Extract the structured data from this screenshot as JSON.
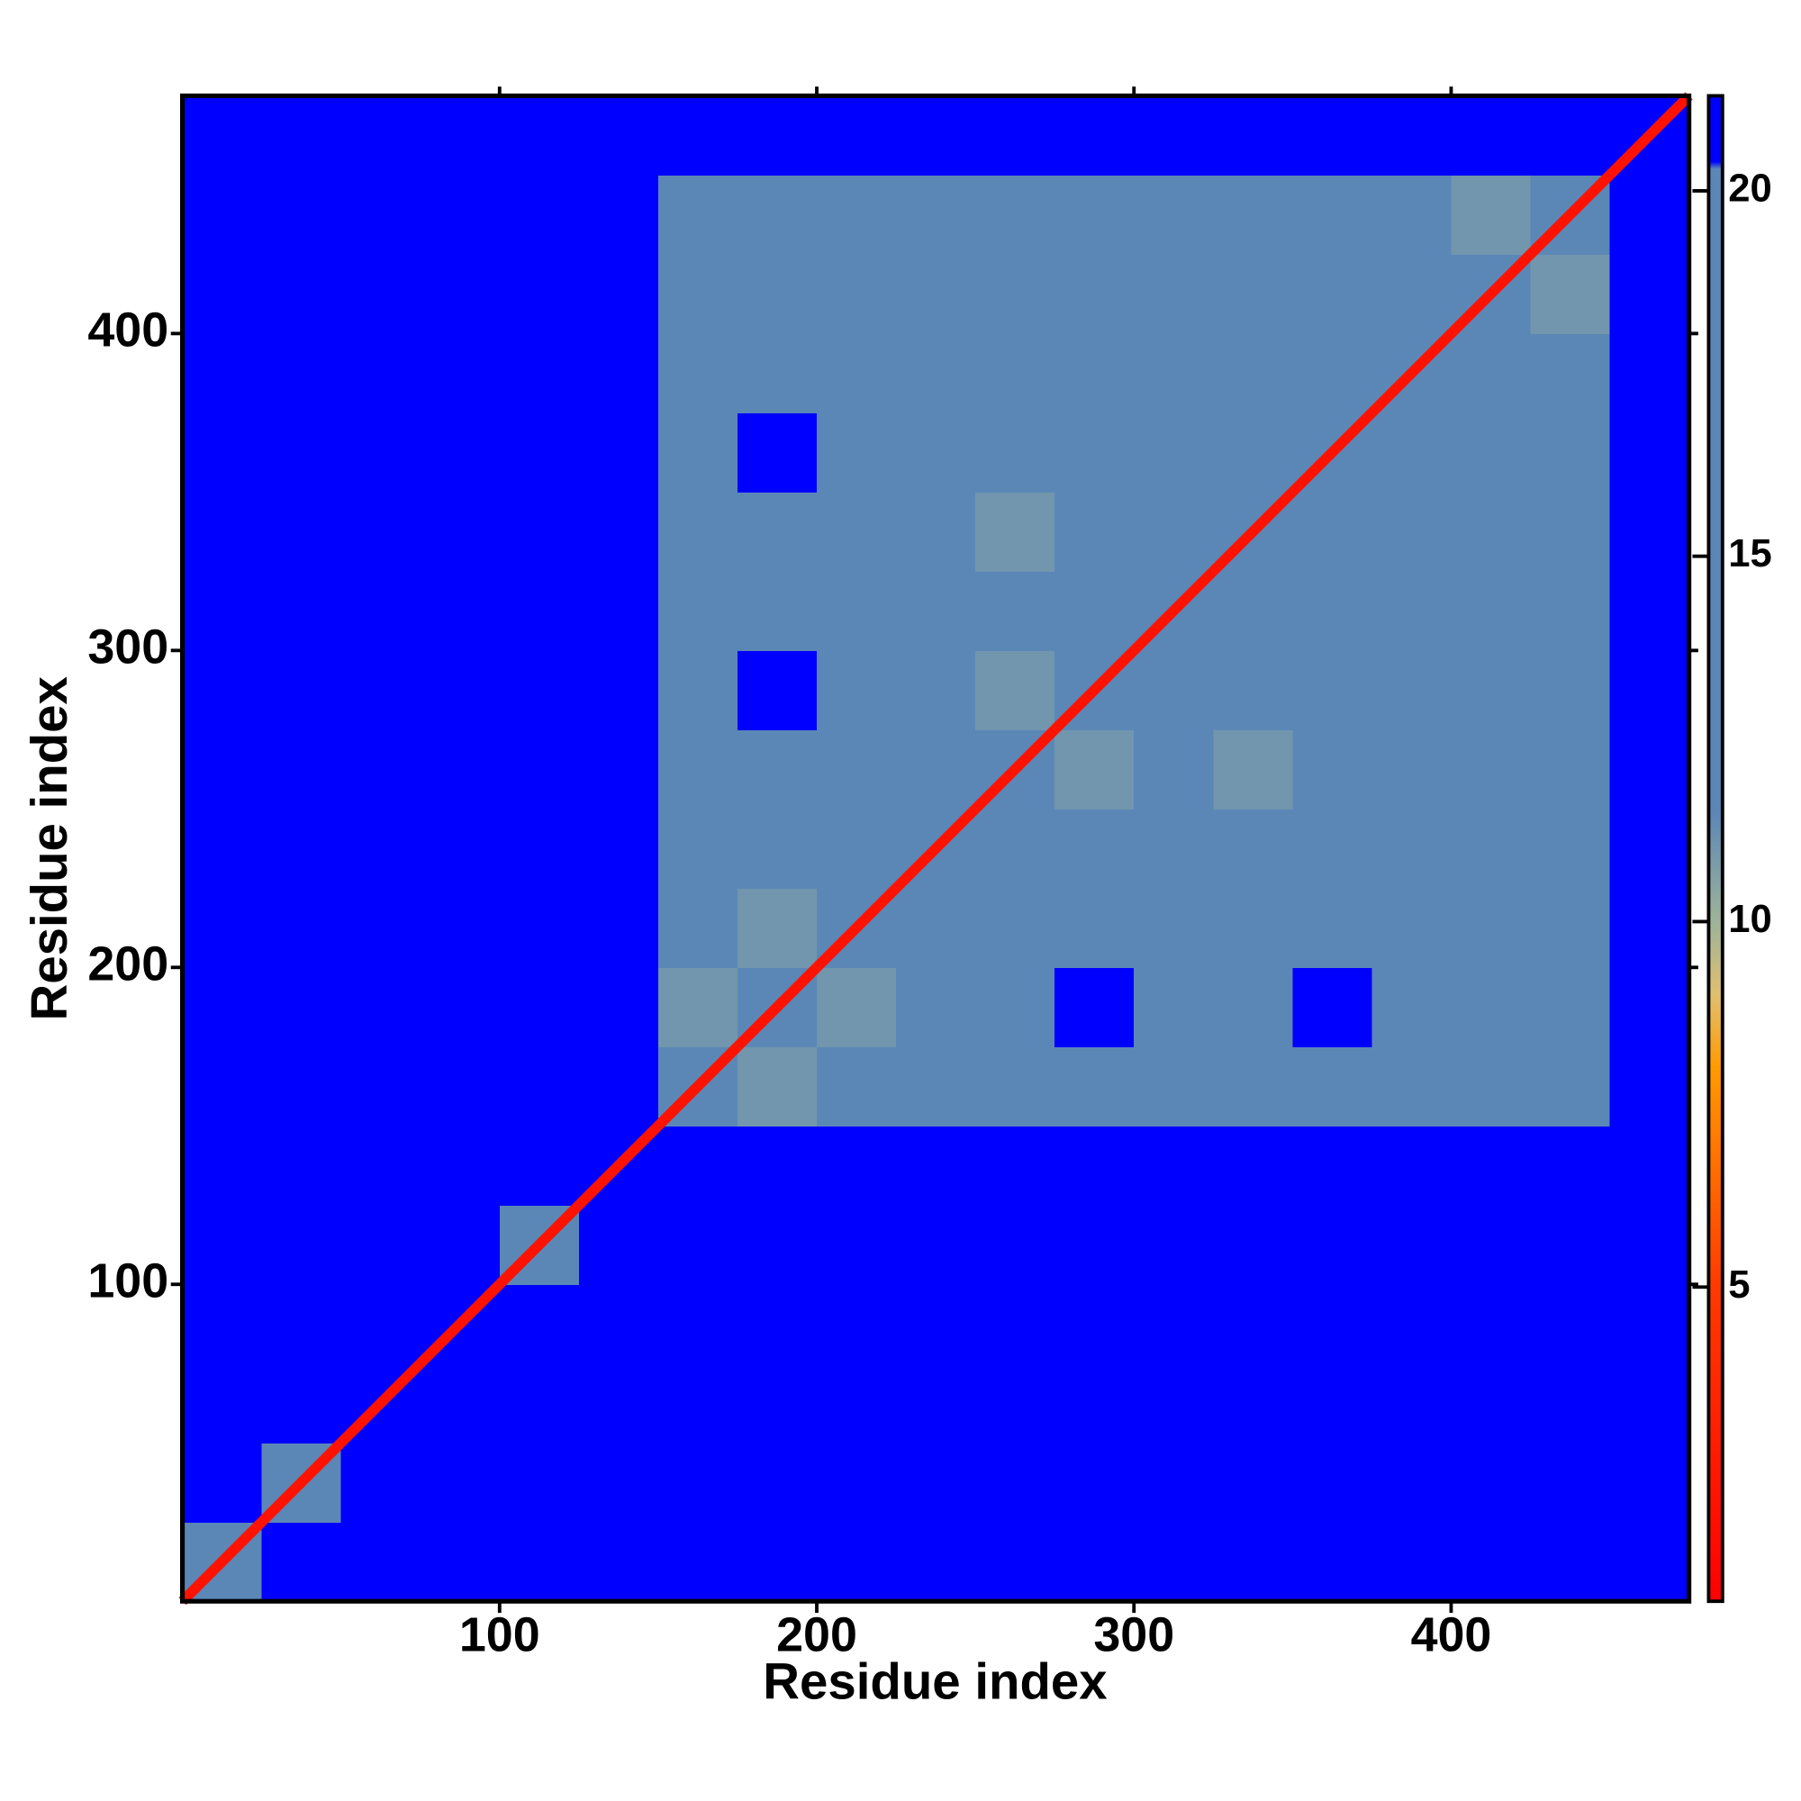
{
  "chart_data": {
    "type": "heatmap",
    "xlabel": "Residue index",
    "ylabel": "Residue index",
    "xlim": [
      0,
      475
    ],
    "ylim": [
      0,
      475
    ],
    "xticks": [
      100,
      200,
      300,
      400
    ],
    "yticks": [
      100,
      200,
      300,
      400
    ],
    "bins": [
      0,
      25,
      50,
      75,
      100,
      125,
      150,
      175,
      200,
      225,
      250,
      275,
      300,
      325,
      350,
      375,
      400,
      425,
      450,
      475
    ],
    "matrix": [
      [
        14,
        21,
        21,
        21,
        21,
        21,
        21,
        21,
        21,
        21,
        21,
        21,
        21,
        21,
        21,
        21,
        21,
        21,
        21
      ],
      [
        21,
        14,
        21,
        21,
        21,
        21,
        21,
        21,
        21,
        21,
        21,
        21,
        21,
        21,
        21,
        21,
        21,
        21,
        21
      ],
      [
        21,
        21,
        21,
        21,
        21,
        21,
        21,
        21,
        21,
        21,
        21,
        21,
        21,
        21,
        21,
        21,
        21,
        21,
        21
      ],
      [
        21,
        21,
        21,
        21,
        21,
        21,
        21,
        21,
        21,
        21,
        21,
        21,
        21,
        21,
        21,
        21,
        21,
        21,
        21
      ],
      [
        21,
        21,
        21,
        21,
        14,
        21,
        21,
        21,
        21,
        21,
        21,
        21,
        21,
        21,
        21,
        21,
        21,
        21,
        21
      ],
      [
        21,
        21,
        21,
        21,
        21,
        21,
        21,
        21,
        21,
        21,
        21,
        21,
        21,
        21,
        21,
        21,
        21,
        21,
        21
      ],
      [
        21,
        21,
        21,
        21,
        21,
        21,
        12,
        11,
        13,
        16,
        16,
        16,
        16,
        16,
        16,
        16,
        16,
        16,
        21
      ],
      [
        21,
        21,
        21,
        21,
        21,
        21,
        11,
        12,
        11,
        16,
        16,
        21,
        16,
        16,
        21,
        16,
        16,
        16,
        21
      ],
      [
        21,
        21,
        21,
        21,
        21,
        21,
        13,
        11,
        12,
        12,
        12,
        16,
        16,
        16,
        16,
        16,
        16,
        16,
        21
      ],
      [
        21,
        21,
        21,
        21,
        21,
        21,
        16,
        16,
        12,
        12,
        16,
        16,
        16,
        12,
        16,
        16,
        13,
        16,
        21
      ],
      [
        21,
        21,
        21,
        21,
        21,
        21,
        16,
        16,
        12,
        16,
        12,
        11,
        16,
        11,
        16,
        16,
        16,
        16,
        21
      ],
      [
        21,
        21,
        21,
        21,
        21,
        21,
        16,
        21,
        16,
        16,
        11,
        12,
        12,
        16,
        16,
        16,
        16,
        16,
        21
      ],
      [
        21,
        21,
        21,
        21,
        21,
        21,
        16,
        16,
        16,
        16,
        16,
        12,
        12,
        12,
        16,
        16,
        16,
        16,
        21
      ],
      [
        21,
        21,
        21,
        21,
        21,
        21,
        16,
        16,
        16,
        12,
        11,
        16,
        12,
        12,
        13,
        16,
        12,
        16,
        21
      ],
      [
        21,
        21,
        21,
        21,
        21,
        21,
        16,
        21,
        16,
        16,
        16,
        16,
        16,
        13,
        12,
        16,
        16,
        16,
        21
      ],
      [
        21,
        21,
        21,
        21,
        21,
        21,
        16,
        16,
        16,
        16,
        16,
        16,
        16,
        16,
        16,
        12,
        12,
        16,
        21
      ],
      [
        21,
        21,
        21,
        21,
        21,
        21,
        16,
        16,
        16,
        13,
        16,
        16,
        16,
        12,
        16,
        12,
        12,
        11,
        21
      ],
      [
        21,
        21,
        21,
        21,
        21,
        21,
        16,
        16,
        16,
        16,
        16,
        16,
        16,
        16,
        16,
        16,
        11,
        12,
        21
      ],
      [
        21,
        21,
        21,
        21,
        21,
        21,
        21,
        21,
        21,
        21,
        21,
        21,
        21,
        21,
        21,
        21,
        21,
        21,
        21
      ]
    ],
    "diagonal": [
      2,
      2,
      2,
      2,
      2,
      2,
      2,
      2,
      2,
      2,
      2,
      2,
      2,
      2,
      2,
      2,
      2,
      2,
      2
    ],
    "clim": [
      0.7,
      21.3
    ],
    "cticks": [
      5,
      10,
      15,
      20
    ],
    "colorscale": [
      [
        0.7,
        "#ff0000"
      ],
      [
        5,
        "#ff3a00"
      ],
      [
        8,
        "#ff9a00"
      ],
      [
        9,
        "#e0c070"
      ],
      [
        10,
        "#9eb39a"
      ],
      [
        11.5,
        "#5b87b7"
      ],
      [
        20.3,
        "#5b87b7"
      ],
      [
        20.4,
        "#0000ff"
      ],
      [
        21.3,
        "#0000ff"
      ]
    ]
  }
}
